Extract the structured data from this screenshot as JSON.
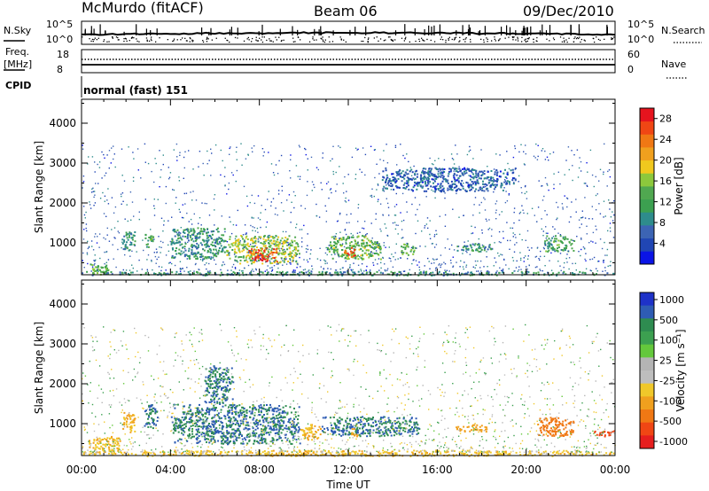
{
  "header": {
    "station": "McMurdo (fitACF)",
    "beam": "Beam 06",
    "date": "09/Dec/2010"
  },
  "status_panels": {
    "nsky_label": "N.Sky",
    "nsky_ticks": [
      "10^5",
      "10^0"
    ],
    "nsearch_label": "N.Search",
    "nsearch_ticks": [
      "10^5",
      "10^0"
    ],
    "freq_label": "Freq.",
    "freq_unit": "[MHz]",
    "freq_ticks": [
      "18",
      "8"
    ],
    "nave_label": "Nave",
    "nave_ticks": [
      "60",
      "0"
    ],
    "cpid_label": "CPID",
    "cpid_value": "normal (fast) 151"
  },
  "colors": {
    "power_scale": [
      "#0a14e6",
      "#2046b4",
      "#3c64b4",
      "#2e8c8c",
      "#3ca050",
      "#50a850",
      "#8cc83c",
      "#f0c81e",
      "#f0a01e",
      "#f07814",
      "#f04614",
      "#e6141e"
    ],
    "velocity_scale": [
      "#e61e1e",
      "#f04614",
      "#f07814",
      "#f0a01e",
      "#f0c82a",
      "#bebebe",
      "#b4b4b4",
      "#64c83c",
      "#3ca050",
      "#2e8c50",
      "#2e5cb4",
      "#1e32c8"
    ]
  },
  "chart_data": [
    {
      "type": "heatmap",
      "name": "power",
      "ylabel": "Slant Range [km]",
      "yticks": [
        "1000",
        "2000",
        "3000",
        "4000"
      ],
      "ylim": [
        200,
        4600
      ],
      "xlim": [
        0,
        24
      ],
      "colorbar": {
        "label": "Power [dB]",
        "ticks": [
          "4",
          "8",
          "12",
          "16",
          "20",
          "24",
          "28"
        ],
        "range": [
          0,
          30
        ]
      },
      "echo_regions": [
        {
          "t0": 0.3,
          "t1": 1.2,
          "r0": 200,
          "r1": 500,
          "level": 14
        },
        {
          "t0": 1.8,
          "t1": 2.4,
          "r0": 800,
          "r1": 1300,
          "level": 10
        },
        {
          "t0": 2.8,
          "t1": 3.2,
          "r0": 900,
          "r1": 1300,
          "level": 12
        },
        {
          "t0": 4.0,
          "t1": 6.5,
          "r0": 600,
          "r1": 1400,
          "level": 10
        },
        {
          "t0": 6.5,
          "t1": 9.8,
          "r0": 500,
          "r1": 1200,
          "level": 16
        },
        {
          "t0": 7.4,
          "t1": 8.8,
          "r0": 550,
          "r1": 900,
          "level": 26
        },
        {
          "t0": 11.0,
          "t1": 13.5,
          "r0": 600,
          "r1": 1200,
          "level": 14
        },
        {
          "t0": 11.8,
          "t1": 12.3,
          "r0": 650,
          "r1": 900,
          "level": 26
        },
        {
          "t0": 14.3,
          "t1": 15.0,
          "r0": 700,
          "r1": 1000,
          "level": 14
        },
        {
          "t0": 16.8,
          "t1": 18.5,
          "r0": 800,
          "r1": 1000,
          "level": 10
        },
        {
          "t0": 20.8,
          "t1": 22.2,
          "r0": 800,
          "r1": 1200,
          "level": 12
        },
        {
          "t0": 13.5,
          "t1": 19.5,
          "r0": 2300,
          "r1": 2900,
          "level": 6
        },
        {
          "t0": 0.0,
          "t1": 24.0,
          "r0": 200,
          "r1": 300,
          "level": 10
        }
      ]
    },
    {
      "type": "heatmap",
      "name": "velocity",
      "ylabel": "Slant Range [km]",
      "yticks": [
        "1000",
        "2000",
        "3000",
        "4000"
      ],
      "ylim": [
        200,
        4600
      ],
      "xlim": [
        0,
        24
      ],
      "xlabel": "Time UT",
      "xticks": [
        "00:00",
        "04:00",
        "08:00",
        "12:00",
        "16:00",
        "20:00",
        "00:00"
      ],
      "colorbar": {
        "label": "Velocity [m s⁻¹]",
        "ticks": [
          "1000",
          "500",
          "100",
          "25",
          "-25",
          "-100",
          "-500",
          "-1000"
        ]
      },
      "echo_regions": [
        {
          "t0": 0.3,
          "t1": 1.8,
          "r0": 300,
          "r1": 700,
          "level": -100
        },
        {
          "t0": 1.8,
          "t1": 2.4,
          "r0": 800,
          "r1": 1300,
          "level": -100
        },
        {
          "t0": 2.8,
          "t1": 3.4,
          "r0": 900,
          "r1": 1500,
          "level": 300
        },
        {
          "t0": 4.0,
          "t1": 9.8,
          "r0": 500,
          "r1": 1500,
          "level": 300
        },
        {
          "t0": 5.5,
          "t1": 6.8,
          "r0": 1500,
          "r1": 2500,
          "level": 300
        },
        {
          "t0": 9.8,
          "t1": 10.8,
          "r0": 600,
          "r1": 1000,
          "level": -100
        },
        {
          "t0": 10.8,
          "t1": 15.2,
          "r0": 700,
          "r1": 1200,
          "level": 300
        },
        {
          "t0": 12.0,
          "t1": 12.4,
          "r0": 700,
          "r1": 900,
          "level": -200
        },
        {
          "t0": 16.8,
          "t1": 18.2,
          "r0": 800,
          "r1": 1000,
          "level": -150
        },
        {
          "t0": 20.5,
          "t1": 22.2,
          "r0": 700,
          "r1": 1200,
          "level": -300
        },
        {
          "t0": 23.0,
          "t1": 24.0,
          "r0": 700,
          "r1": 850,
          "level": -700
        },
        {
          "t0": 0.0,
          "t1": 24.0,
          "r0": 200,
          "r1": 350,
          "level": -80
        }
      ]
    }
  ]
}
